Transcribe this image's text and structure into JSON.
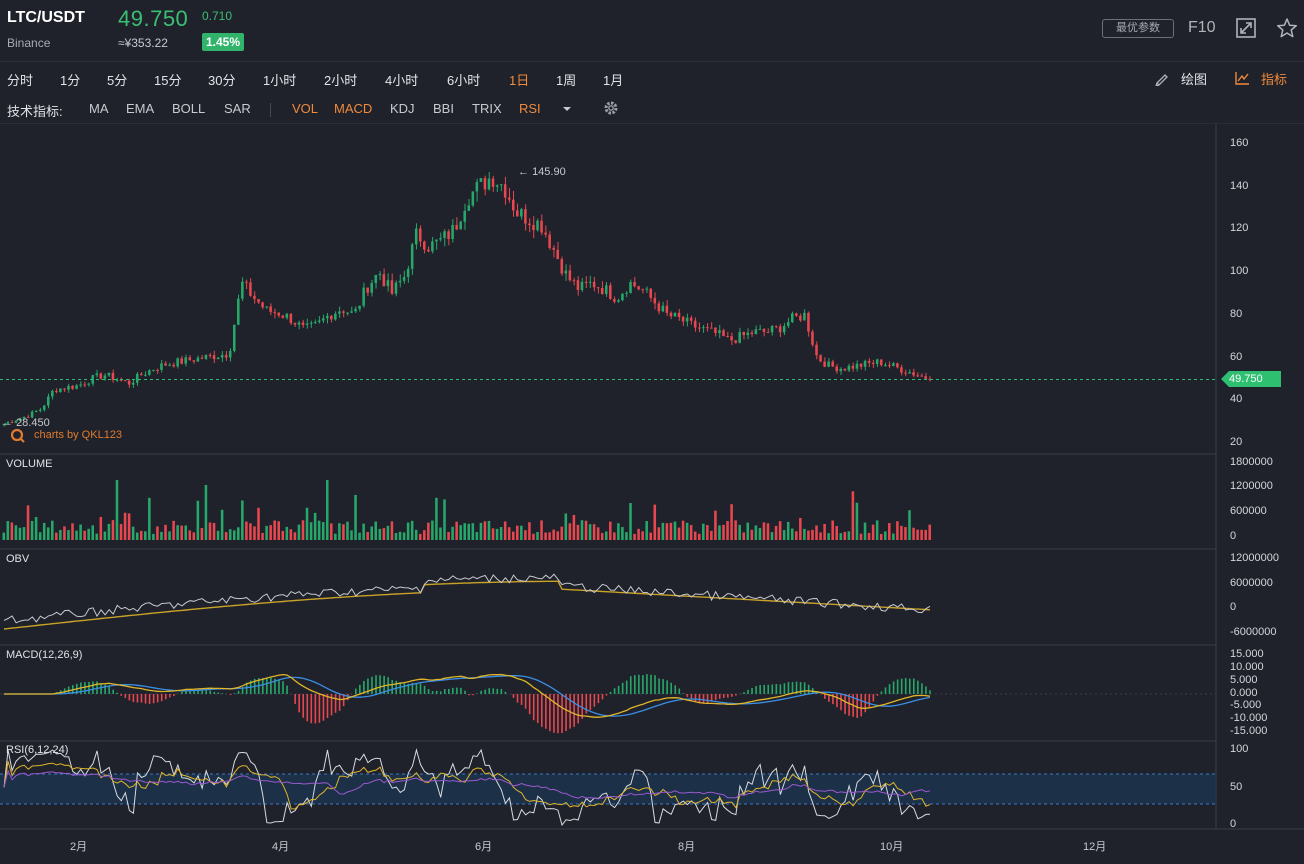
{
  "header": {
    "symbol": "LTC/USDT",
    "exchange": "Binance",
    "price": "49.750",
    "change": "0.710",
    "cny_price": "≈¥353.22",
    "change_pct": "1.45%",
    "best_params_label": "最优参数",
    "f10_label": "F10",
    "fullscreen_icon": "expand-icon",
    "favorite_icon": "star-icon"
  },
  "timeframes": {
    "items": [
      "分时",
      "1分",
      "5分",
      "15分",
      "30分",
      "1小时",
      "2小时",
      "4小时",
      "6小时",
      "1日",
      "1周",
      "1月"
    ],
    "active": "1日",
    "draw_label": "绘图",
    "indicator_label": "指标"
  },
  "indicator_bar": {
    "label": "技术指标:",
    "main_indicators": [
      "MA",
      "EMA",
      "BOLL",
      "SAR"
    ],
    "sub_indicators": [
      "VOL",
      "MACD",
      "KDJ",
      "BBI",
      "TRIX",
      "RSI"
    ],
    "active_sub": [
      "VOL",
      "MACD",
      "RSI"
    ],
    "more_icon": "caret-down-icon",
    "settings_icon": "gear-icon"
  },
  "colors": {
    "up": "#26a86b",
    "down": "#e8474f",
    "accent": "#f08a3c",
    "price_line": "#2fbf70",
    "bg": "#1f222a"
  },
  "chart_data": {
    "type": "candlestick",
    "x_axis_labels": [
      "2月",
      "4月",
      "6月",
      "8月",
      "10月",
      "12月"
    ],
    "price_axis": {
      "ticks": [
        160,
        140,
        120,
        100,
        80,
        60,
        40,
        20
      ],
      "range": [
        20,
        160
      ]
    },
    "last_price_tag": "49.750",
    "high_annotation": "145.90",
    "low_annotation": "28.450",
    "watermark": "charts by QKL123",
    "price_series_approx": [
      29,
      31,
      33,
      36,
      45,
      46,
      47,
      50,
      52,
      50,
      48,
      52,
      55,
      57,
      58,
      59,
      60,
      61,
      62,
      95,
      88,
      82,
      81,
      78,
      73,
      75,
      80,
      83,
      80,
      93,
      100,
      90,
      98,
      118,
      112,
      115,
      120,
      135,
      140,
      145,
      140,
      128,
      125,
      122,
      110,
      98,
      92,
      95,
      92,
      88,
      95,
      92,
      86,
      80,
      78,
      75,
      73,
      71,
      68,
      70,
      72,
      72,
      74,
      78,
      80,
      60,
      56,
      55,
      56,
      57,
      58,
      56,
      54,
      52,
      50
    ],
    "panes": [
      {
        "name": "VOLUME",
        "ticks": [
          "1800000",
          "1200000",
          "600000",
          "0"
        ]
      },
      {
        "name": "OBV",
        "ticks": [
          "12000000",
          "6000000",
          "0",
          "-6000000"
        ]
      },
      {
        "name": "MACD(12,26,9)",
        "ticks": [
          "15.000",
          "10.000",
          "5.000",
          "0.000",
          "-5.000",
          "-10.000",
          "-15.000"
        ]
      },
      {
        "name": "RSI(6,12,24)",
        "ticks": [
          "100",
          "50",
          "0"
        ]
      }
    ]
  }
}
